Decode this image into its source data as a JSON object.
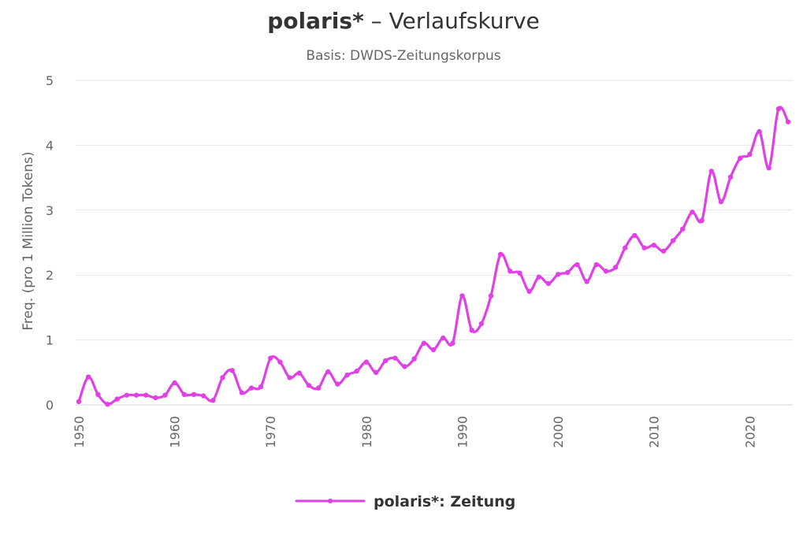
{
  "chart": {
    "title_bold": "polaris*",
    "title_rest": " – Verlaufskurve",
    "subtitle": "Basis: DWDS-Zeitungskorpus",
    "legend_label": "polaris*: Zeitung",
    "line_color": "#e040e6"
  },
  "chart_data": {
    "type": "line",
    "title": "polaris* – Verlaufskurve",
    "subtitle": "Basis: DWDS-Zeitungskorpus",
    "xlabel": "",
    "ylabel": "Freq. (pro 1 Million Tokens)",
    "xlim": [
      1950,
      2024
    ],
    "ylim": [
      0,
      5
    ],
    "x_ticks": [
      1950,
      1960,
      1970,
      1980,
      1990,
      2000,
      2010,
      2020
    ],
    "y_ticks": [
      0,
      1,
      2,
      3,
      4,
      5
    ],
    "grid": true,
    "legend": "bottom-center",
    "series": [
      {
        "name": "polaris*: Zeitung",
        "color": "#e040e6",
        "x": [
          1950,
          1951,
          1952,
          1953,
          1954,
          1955,
          1956,
          1957,
          1958,
          1959,
          1960,
          1961,
          1962,
          1963,
          1964,
          1965,
          1966,
          1967,
          1968,
          1969,
          1970,
          1971,
          1972,
          1973,
          1974,
          1975,
          1976,
          1977,
          1978,
          1979,
          1980,
          1981,
          1982,
          1983,
          1984,
          1985,
          1986,
          1987,
          1988,
          1989,
          1990,
          1991,
          1992,
          1993,
          1994,
          1995,
          1996,
          1997,
          1998,
          1999,
          2000,
          2001,
          2002,
          2003,
          2004,
          2005,
          2006,
          2007,
          2008,
          2009,
          2010,
          2011,
          2012,
          2013,
          2014,
          2015,
          2016,
          2017,
          2018,
          2019,
          2020,
          2021,
          2022,
          2023,
          2024
        ],
        "values": [
          0.05,
          0.43,
          0.16,
          0.01,
          0.09,
          0.15,
          0.15,
          0.15,
          0.11,
          0.15,
          0.34,
          0.16,
          0.16,
          0.14,
          0.07,
          0.42,
          0.53,
          0.19,
          0.26,
          0.28,
          0.72,
          0.66,
          0.42,
          0.49,
          0.3,
          0.26,
          0.51,
          0.32,
          0.46,
          0.52,
          0.66,
          0.5,
          0.68,
          0.72,
          0.59,
          0.71,
          0.95,
          0.85,
          1.03,
          0.95,
          1.68,
          1.15,
          1.25,
          1.68,
          2.32,
          2.06,
          2.03,
          1.75,
          1.97,
          1.87,
          2.01,
          2.04,
          2.16,
          1.9,
          2.16,
          2.06,
          2.12,
          2.42,
          2.61,
          2.42,
          2.46,
          2.37,
          2.53,
          2.71,
          2.97,
          2.84,
          3.6,
          3.13,
          3.51,
          3.8,
          3.86,
          4.21,
          3.65,
          4.56,
          4.36
        ]
      }
    ]
  }
}
